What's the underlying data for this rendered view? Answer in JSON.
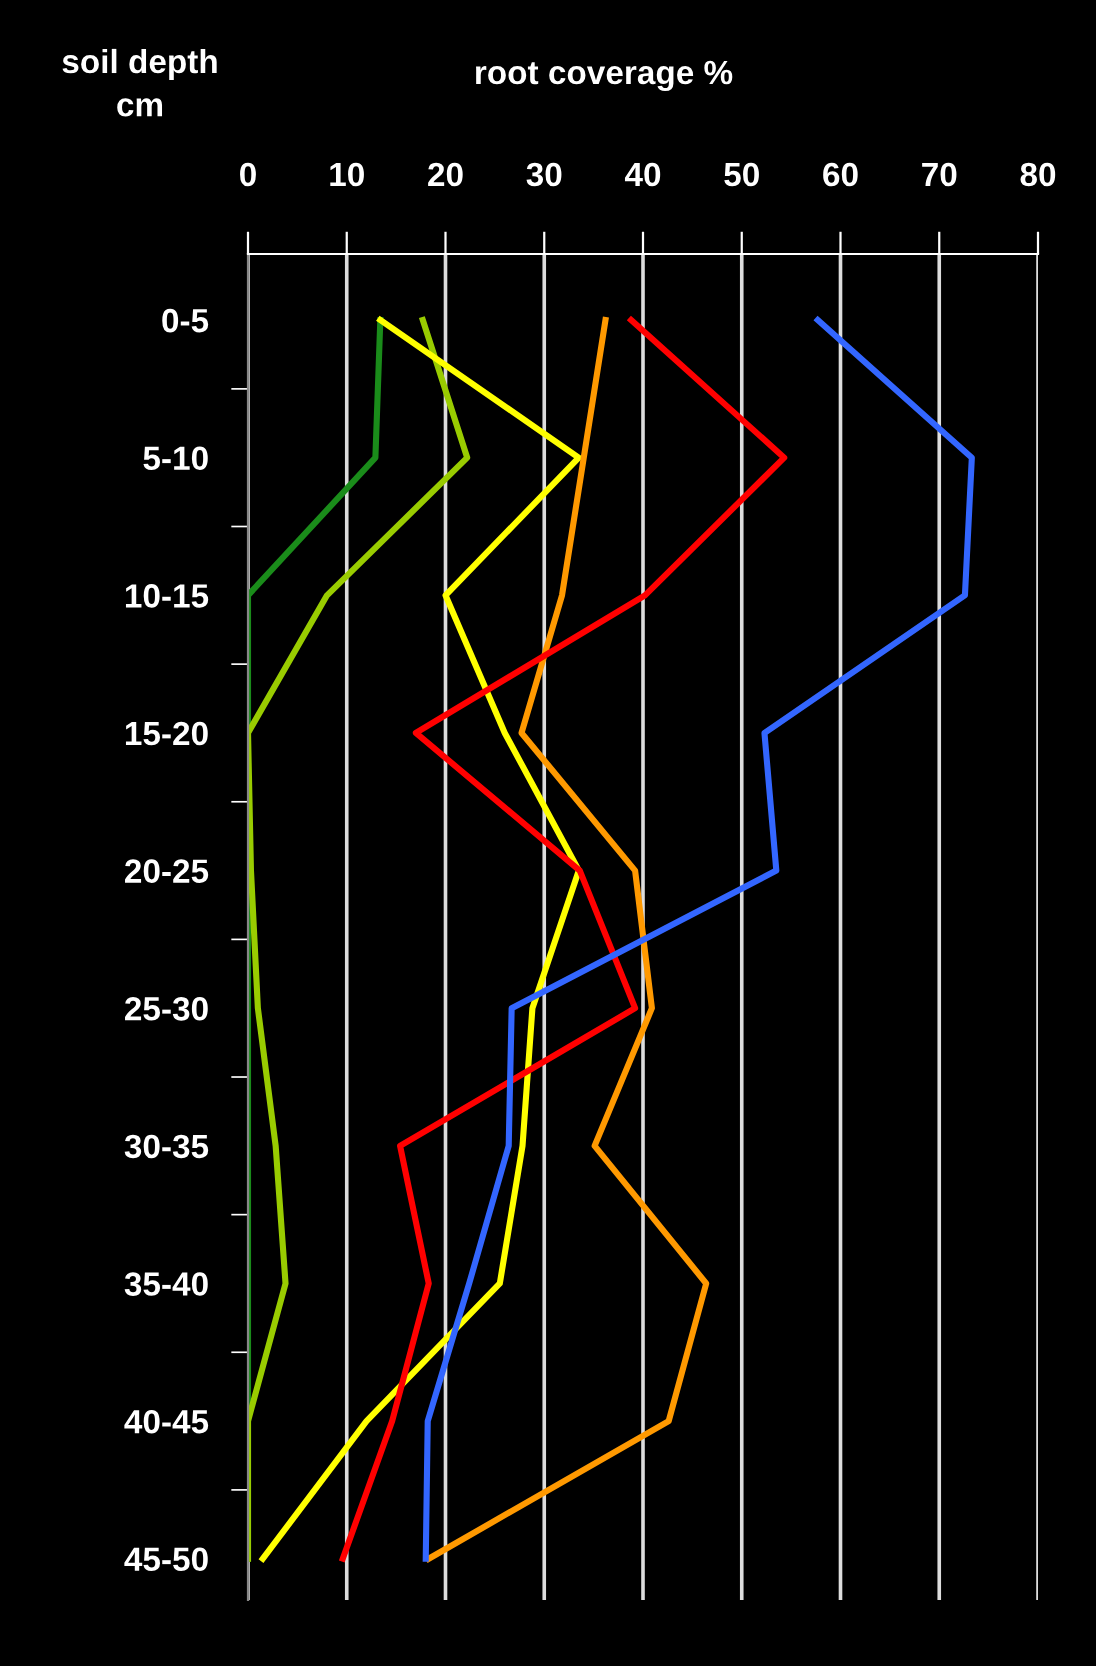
{
  "chart_data": {
    "type": "line",
    "xlabel": "root coverage %",
    "ylabel": "soil depth\ncm",
    "orientation": "horizontal",
    "categories": [
      "0-5",
      "5-10",
      "10-15",
      "15-20",
      "20-25",
      "25-30",
      "30-35",
      "35-40",
      "40-45",
      "45-50"
    ],
    "xlim": [
      0,
      80
    ],
    "xticks": [
      0,
      10,
      20,
      30,
      40,
      50,
      60,
      70,
      80
    ],
    "grid": "x",
    "legend": false,
    "marker": "none",
    "line_style": "solid",
    "series": [
      {
        "color": "#1a8c1a",
        "values": [
          13.4,
          12.9,
          0,
          0,
          0,
          0,
          0,
          0,
          0,
          0
        ]
      },
      {
        "color": "#99cc00",
        "values": [
          17.7,
          22.2,
          8,
          0,
          0.3,
          1,
          2.8,
          3.8,
          0,
          0
        ]
      },
      {
        "color": "#ffff00",
        "values": [
          13.4,
          33.5,
          20,
          26,
          33.5,
          28.8,
          27.8,
          25.5,
          12,
          1.5
        ]
      },
      {
        "color": "#ff9900",
        "values": [
          36.2,
          34,
          31.8,
          27.7,
          39.2,
          40.9,
          35.1,
          46.4,
          42.6,
          18.3
        ]
      },
      {
        "color": "#ff0000",
        "values": [
          38.8,
          54.3,
          40.2,
          17,
          33.6,
          39.2,
          15.4,
          18.3,
          14.6,
          9.6
        ]
      },
      {
        "color": "#3366ff",
        "values": [
          57.7,
          73.3,
          72.6,
          52.3,
          53.5,
          26.7,
          26.4,
          22.4,
          18.2,
          18
        ]
      }
    ]
  }
}
